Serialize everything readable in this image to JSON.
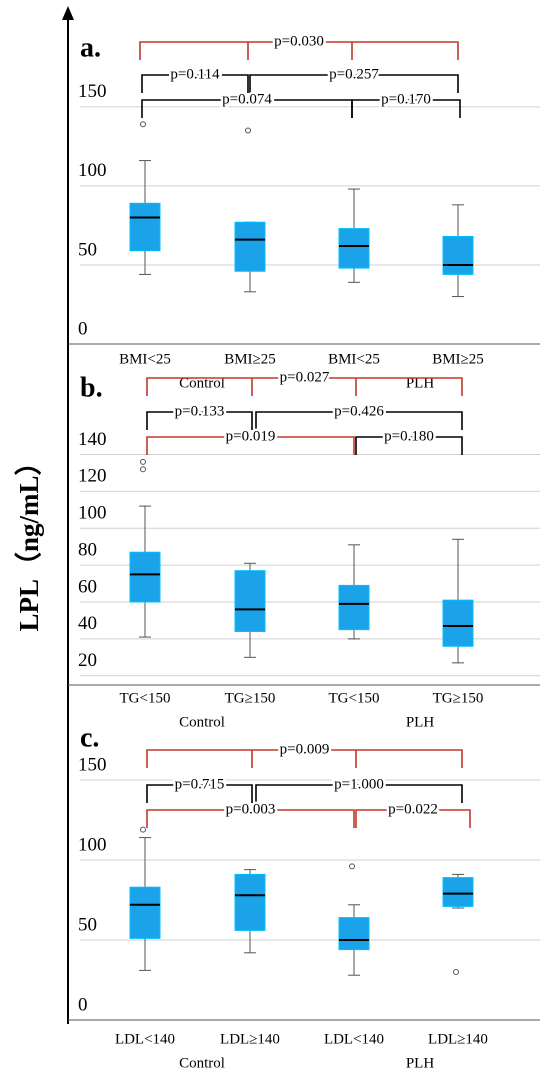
{
  "chart_data": [
    {
      "type": "box",
      "label": "a.",
      "ylabel": "LPL（ng/mL）",
      "categories": [
        "BMI<25",
        "BMI≥25",
        "BMI<25",
        "BMI≥25"
      ],
      "groups": [
        "Control",
        "PLH"
      ],
      "ylim": [
        0,
        160
      ],
      "yticks": [
        0,
        50,
        100,
        150
      ],
      "grid": true,
      "color": "#1aa3e8",
      "boxes": [
        {
          "min": 44,
          "q1": 59,
          "median": 80,
          "q3": 89,
          "max": 116,
          "outliers": [
            139
          ]
        },
        {
          "min": 33,
          "q1": 46,
          "median": 66,
          "q3": 77,
          "max": 77,
          "outliers": [
            135
          ]
        },
        {
          "min": 39,
          "q1": 48,
          "median": 62,
          "q3": 73,
          "max": 98,
          "outliers": []
        },
        {
          "min": 30,
          "q1": 44,
          "median": 50,
          "q3": 68,
          "max": 88,
          "outliers": []
        }
      ],
      "annotations": [
        {
          "text": "p=0.030",
          "color": "#c0392b"
        },
        {
          "text": "p=0.114",
          "color": "#000000"
        },
        {
          "text": "p=0.257",
          "color": "#000000"
        },
        {
          "text": "p=0.074",
          "color": "#000000"
        },
        {
          "text": "p=0.170",
          "color": "#000000"
        }
      ]
    },
    {
      "type": "box",
      "label": "b.",
      "categories": [
        "TG<150",
        "TG≥150",
        "TG<150",
        "TG≥150"
      ],
      "groups": [
        "Control",
        "PLH"
      ],
      "ylim": [
        15,
        150
      ],
      "yticks": [
        20,
        40,
        60,
        80,
        100,
        120,
        140
      ],
      "grid": true,
      "color": "#1aa3e8",
      "boxes": [
        {
          "min": 41,
          "q1": 60,
          "median": 75,
          "q3": 87,
          "max": 112,
          "outliers": [
            136,
            132
          ]
        },
        {
          "min": 30,
          "q1": 44,
          "median": 56,
          "q3": 77,
          "max": 81,
          "outliers": []
        },
        {
          "min": 40,
          "q1": 45,
          "median": 59,
          "q3": 69,
          "max": 91,
          "outliers": []
        },
        {
          "min": 27,
          "q1": 36,
          "median": 47,
          "q3": 61,
          "max": 94,
          "outliers": []
        }
      ],
      "annotations": [
        {
          "text": "p=0.027",
          "color": "#c0392b"
        },
        {
          "text": "p=0.133",
          "color": "#000000"
        },
        {
          "text": "p=0.426",
          "color": "#000000"
        },
        {
          "text": "p=0.019",
          "color": "#c0392b"
        },
        {
          "text": "p=0.180",
          "color": "#000000"
        }
      ]
    },
    {
      "type": "box",
      "label": "c.",
      "categories": [
        "LDL<140",
        "LDL≥140",
        "LDL<140",
        "LDL≥140"
      ],
      "groups": [
        "Control",
        "PLH"
      ],
      "ylim": [
        0,
        160
      ],
      "yticks": [
        0,
        50,
        100,
        150
      ],
      "grid": true,
      "color": "#1aa3e8",
      "boxes": [
        {
          "min": 31,
          "q1": 51,
          "median": 72,
          "q3": 83,
          "max": 114,
          "outliers": [
            119
          ]
        },
        {
          "min": 42,
          "q1": 56,
          "median": 78,
          "q3": 91,
          "max": 94,
          "outliers": []
        },
        {
          "min": 28,
          "q1": 44,
          "median": 50,
          "q3": 64,
          "max": 72,
          "outliers": [
            96
          ]
        },
        {
          "min": 70,
          "q1": 71,
          "median": 79,
          "q3": 89,
          "max": 91,
          "outliers": [
            30
          ]
        }
      ],
      "annotations": [
        {
          "text": "p=0.009",
          "color": "#c0392b"
        },
        {
          "text": "p=0.715",
          "color": "#000000"
        },
        {
          "text": "p=1.000",
          "color": "#000000"
        },
        {
          "text": "p=0.003",
          "color": "#c0392b"
        },
        {
          "text": "p=0.022",
          "color": "#c0392b"
        }
      ]
    }
  ]
}
